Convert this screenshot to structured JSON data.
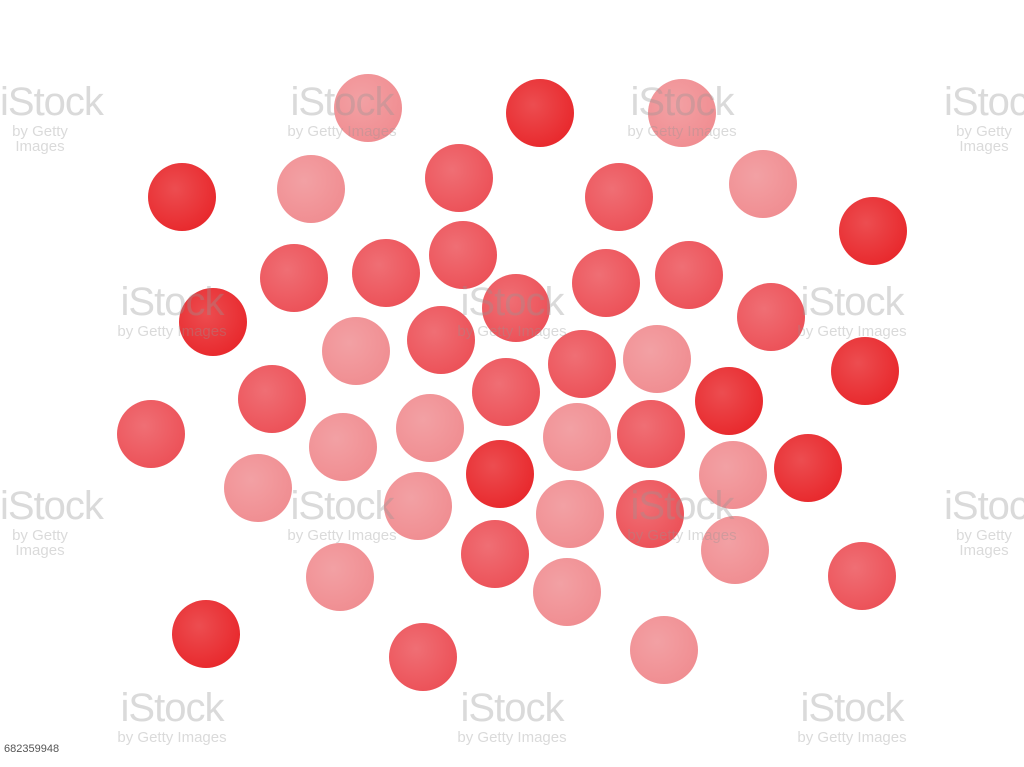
{
  "image": {
    "description_colors": {
      "dot_dark": "#e8262a",
      "dot_mid": "#ec4f56",
      "dot_light": "#f08c90"
    },
    "watermark": {
      "line1": "iStock",
      "line2": "by Getty Images"
    },
    "image_id_label": "682359948"
  },
  "dots": [
    {
      "shade": "light"
    },
    {
      "shade": "dark"
    },
    {
      "shade": "light"
    },
    {
      "shade": "dark"
    },
    {
      "shade": "light"
    },
    {
      "shade": "mid"
    },
    {
      "shade": "mid"
    },
    {
      "shade": "light"
    },
    {
      "shade": "dark"
    },
    {
      "shade": "mid"
    },
    {
      "shade": "mid"
    },
    {
      "shade": "mid"
    },
    {
      "shade": "mid"
    },
    {
      "shade": "mid"
    },
    {
      "shade": "dark"
    },
    {
      "shade": "mid"
    },
    {
      "shade": "light"
    },
    {
      "shade": "mid"
    },
    {
      "shade": "mid"
    },
    {
      "shade": "mid"
    },
    {
      "shade": "light"
    },
    {
      "shade": "mid"
    },
    {
      "shade": "mid"
    },
    {
      "shade": "dark"
    },
    {
      "shade": "dark"
    },
    {
      "shade": "mid"
    },
    {
      "shade": "light"
    },
    {
      "shade": "light"
    },
    {
      "shade": "mid"
    },
    {
      "shade": "light"
    },
    {
      "shade": "dark"
    },
    {
      "shade": "dark"
    },
    {
      "shade": "light"
    },
    {
      "shade": "light"
    },
    {
      "shade": "light"
    },
    {
      "shade": "light"
    },
    {
      "shade": "mid"
    },
    {
      "shade": "mid"
    },
    {
      "shade": "light"
    },
    {
      "shade": "light"
    },
    {
      "shade": "light"
    },
    {
      "shade": "mid"
    },
    {
      "shade": "dark"
    },
    {
      "shade": "mid"
    },
    {
      "shade": "light"
    },
    {
      "shade": "light"
    },
    {
      "shade": "light"
    }
  ]
}
